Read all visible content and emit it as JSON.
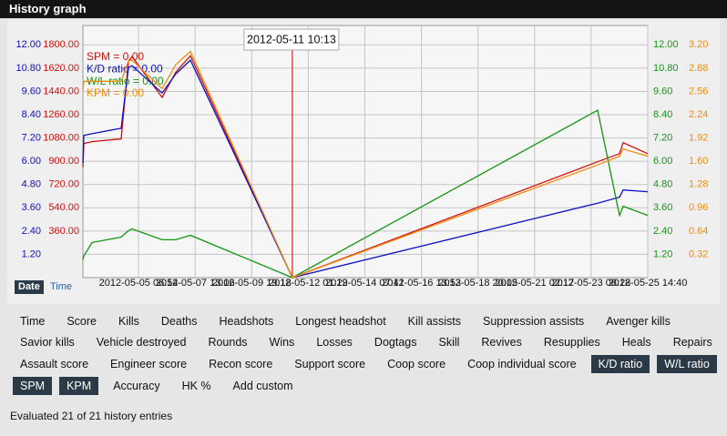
{
  "header": {
    "title": "History graph"
  },
  "chart": {
    "type": "line",
    "tooltip": "2012-05-11 10:13",
    "grid": true,
    "x": [
      "2012-05-03 01:35",
      "2012-05-03 02:27",
      "2012-05-03 10:19",
      "2012-05-04 14:14",
      "2012-05-04 21:13",
      "2012-05-05 00:42",
      "2012-05-06 05:30",
      "2012-05-06 18:36",
      "2012-05-07 08:33",
      "2012-05-11 10:13",
      "2012-05-23 14:39",
      "2012-05-24 11:36",
      "2012-05-24 15:05",
      "2012-05-25 14:40"
    ],
    "xlim": [
      "2012-05-03 01:35",
      "2012-05-25 14:40"
    ],
    "xticks": [
      "2012-05-05 06:54",
      "2012-05-07 13:06",
      "2012-05-09 19:18",
      "2012-05-12 01:29",
      "2012-05-14 07:41",
      "2012-05-16 13:53",
      "2012-05-18 20:05",
      "2012-05-21 02:17",
      "2012-05-23 08:28",
      "2012-05-25 14:40"
    ],
    "axes": [
      {
        "side": "left",
        "color": "#1010c0",
        "lim": [
          0,
          13
        ],
        "ticks": [
          {
            "value": 1.2,
            "label": "1.20"
          },
          {
            "value": 2.4,
            "label": "2.40"
          },
          {
            "value": 3.6,
            "label": "3.60"
          },
          {
            "value": 4.8,
            "label": "4.80"
          },
          {
            "value": 6,
            "label": "6.00"
          },
          {
            "value": 7.2,
            "label": "7.20"
          },
          {
            "value": 8.4,
            "label": "8.40"
          },
          {
            "value": 9.6,
            "label": "9.60"
          },
          {
            "value": 10.8,
            "label": "10.80"
          },
          {
            "value": 12,
            "label": "12.00"
          }
        ]
      },
      {
        "side": "left",
        "color": "#d01010",
        "lim": [
          0,
          1950
        ],
        "ticks": [
          {
            "value": 360,
            "label": "360.00"
          },
          {
            "value": 540,
            "label": "540.00"
          },
          {
            "value": 720,
            "label": "720.00"
          },
          {
            "value": 900,
            "label": "900.00"
          },
          {
            "value": 1080,
            "label": "1080.00"
          },
          {
            "value": 1260,
            "label": "1260.00"
          },
          {
            "value": 1440,
            "label": "1440.00"
          },
          {
            "value": 1620,
            "label": "1620.00"
          },
          {
            "value": 1800,
            "label": "1800.00"
          }
        ]
      },
      {
        "side": "right",
        "color": "#149614",
        "lim": [
          0,
          13
        ],
        "ticks": [
          {
            "value": 1.2,
            "label": "1.20"
          },
          {
            "value": 2.4,
            "label": "2.40"
          },
          {
            "value": 3.6,
            "label": "3.60"
          },
          {
            "value": 4.8,
            "label": "4.80"
          },
          {
            "value": 6,
            "label": "6.00"
          },
          {
            "value": 7.2,
            "label": "7.20"
          },
          {
            "value": 8.4,
            "label": "8.40"
          },
          {
            "value": 9.6,
            "label": "9.60"
          },
          {
            "value": 10.8,
            "label": "10.80"
          },
          {
            "value": 12,
            "label": "12.00"
          }
        ]
      },
      {
        "side": "right",
        "color": "#f08c10",
        "lim": [
          0,
          3.4667
        ],
        "ticks": [
          {
            "value": 0.32,
            "label": "0.32"
          },
          {
            "value": 0.64,
            "label": "0.64"
          },
          {
            "value": 0.96,
            "label": "0.96"
          },
          {
            "value": 1.28,
            "label": "1.28"
          },
          {
            "value": 1.6,
            "label": "1.60"
          },
          {
            "value": 1.92,
            "label": "1.92"
          },
          {
            "value": 2.24,
            "label": "2.24"
          },
          {
            "value": 2.56,
            "label": "2.56"
          },
          {
            "value": 2.88,
            "label": "2.88"
          },
          {
            "value": 3.2,
            "label": "3.20"
          }
        ]
      }
    ],
    "series": [
      {
        "name": "SPM = 0.00",
        "color": "#d01010",
        "axis": 1,
        "values": [
          853,
          1037,
          1052,
          1073,
          1674,
          1709,
          1394,
          1590,
          1716,
          0,
          896,
          959,
          1043,
          959
        ]
      },
      {
        "name": "K/D ratio = 0.00",
        "color": "#1010c0",
        "axis": 0,
        "values": [
          5.92,
          7.33,
          7.42,
          7.7,
          10.83,
          10.93,
          9.52,
          10.51,
          11.21,
          0,
          3.84,
          4.15,
          4.52,
          4.43
        ]
      },
      {
        "name": "W/L ratio = 0.00",
        "color": "#149614",
        "axis": 2,
        "values": [
          0.92,
          1.11,
          1.81,
          2.09,
          2.42,
          2.51,
          1.95,
          1.95,
          2.18,
          0,
          8.63,
          3.21,
          3.68,
          3.21
        ]
      },
      {
        "name": "KPM = 0.00",
        "color": "#f08c10",
        "axis": 3,
        "values": [
          2.58,
          2.7,
          2.7,
          2.7,
          2.98,
          2.99,
          2.6,
          2.93,
          3.11,
          0,
          1.55,
          1.67,
          1.77,
          1.67
        ]
      }
    ]
  },
  "date_toggle": [
    {
      "label": "Date",
      "active": true
    },
    {
      "label": "Time",
      "active": false
    }
  ],
  "buttons": [
    [
      {
        "label": "Time",
        "active": false
      },
      {
        "label": "Score",
        "active": false
      },
      {
        "label": "Kills",
        "active": false
      },
      {
        "label": "Deaths",
        "active": false
      },
      {
        "label": "Headshots",
        "active": false
      },
      {
        "label": "Longest headshot",
        "active": false
      },
      {
        "label": "Kill assists",
        "active": false
      },
      {
        "label": "Suppression assists",
        "active": false
      },
      {
        "label": "Avenger kills",
        "active": false
      }
    ],
    [
      {
        "label": "Savior kills",
        "active": false
      },
      {
        "label": "Vehicle destroyed",
        "active": false
      },
      {
        "label": "Rounds",
        "active": false
      },
      {
        "label": "Wins",
        "active": false
      },
      {
        "label": "Losses",
        "active": false
      },
      {
        "label": "Dogtags",
        "active": false
      },
      {
        "label": "Skill",
        "active": false
      },
      {
        "label": "Revives",
        "active": false
      },
      {
        "label": "Resupplies",
        "active": false
      },
      {
        "label": "Heals",
        "active": false
      },
      {
        "label": "Repairs",
        "active": false
      }
    ],
    [
      {
        "label": "Assault score",
        "active": false
      },
      {
        "label": "Engineer score",
        "active": false
      },
      {
        "label": "Recon score",
        "active": false
      },
      {
        "label": "Support score",
        "active": false
      },
      {
        "label": "Coop score",
        "active": false
      },
      {
        "label": "Coop individual score",
        "active": false
      },
      {
        "label": "K/D ratio",
        "active": true
      },
      {
        "label": "W/L ratio",
        "active": true
      }
    ],
    [
      {
        "label": "SPM",
        "active": true
      },
      {
        "label": "KPM",
        "active": true
      },
      {
        "label": "Accuracy",
        "active": false
      },
      {
        "label": "HK %",
        "active": false
      },
      {
        "label": "Add custom",
        "active": false
      }
    ]
  ],
  "status": "Evaluated 21 of 21 history entries"
}
